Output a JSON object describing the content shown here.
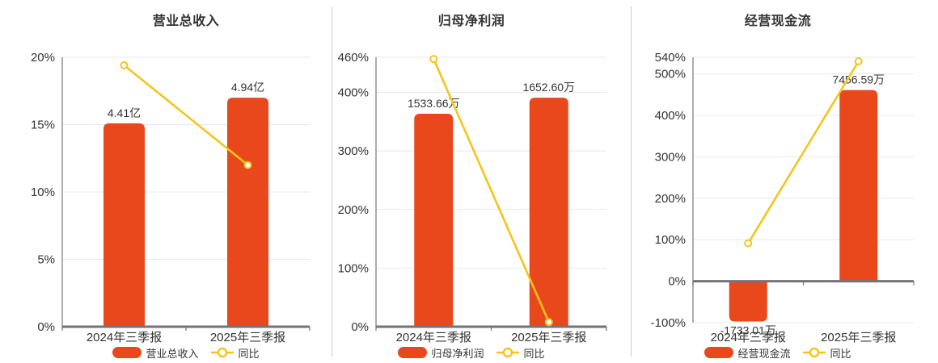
{
  "colors": {
    "bar": "#e8481c",
    "line": "#f5c51a",
    "grid": "#e4e8f0",
    "axis": "#73737a",
    "text": "#333333",
    "separator": "#cccccc",
    "background": "#ffffff"
  },
  "chart_data": [
    {
      "type": "bar",
      "title": "营业总收入",
      "categories": [
        "2024年三季报",
        "2025年三季报"
      ],
      "bar_series": {
        "name": "营业总收入",
        "value_labels": [
          "4.41亿",
          "4.94亿"
        ],
        "bar_top_axis_pct": [
          15.1,
          17.0
        ]
      },
      "line_series": {
        "name": "同比",
        "marker": "hollow-circle",
        "values_pct": [
          19.4,
          12.0
        ]
      },
      "y_axis": {
        "min": 0,
        "max": 20,
        "ticks": [
          0,
          5,
          10,
          15,
          20
        ],
        "tick_labels": [
          "0%",
          "5%",
          "10%",
          "15%",
          "20%"
        ]
      },
      "legend_position": "bottom",
      "grid": true
    },
    {
      "type": "bar",
      "title": "归母净利润",
      "categories": [
        "2024年三季报",
        "2025年三季报"
      ],
      "bar_series": {
        "name": "归母净利润",
        "value_labels": [
          "1533.66万",
          "1652.60万"
        ],
        "bar_top_axis_pct": [
          363.6,
          391.0
        ]
      },
      "line_series": {
        "name": "同比",
        "marker": "hollow-circle",
        "values_pct": [
          457.0,
          7.8
        ]
      },
      "y_axis": {
        "min": 0,
        "max": 460,
        "ticks": [
          0,
          100,
          200,
          300,
          400,
          460
        ],
        "tick_labels": [
          "0%",
          "100%",
          "200%",
          "300%",
          "400%",
          "460%"
        ]
      },
      "legend_position": "bottom",
      "grid": true
    },
    {
      "type": "bar",
      "title": "经营现金流",
      "categories": [
        "2024年三季报",
        "2025年三季报"
      ],
      "bar_series": {
        "name": "经营现金流",
        "value_labels": [
          "-1733.01万",
          "7456.59万"
        ],
        "bar_top_axis_pct": [
          -97,
          461
        ]
      },
      "line_series": {
        "name": "同比",
        "marker": "hollow-circle",
        "values_pct": [
          91.4,
          530.3
        ]
      },
      "y_axis": {
        "min": -100,
        "max": 540,
        "ticks": [
          -100,
          0,
          100,
          200,
          300,
          400,
          500,
          540
        ],
        "tick_labels": [
          "-100%",
          "0%",
          "100%",
          "200%",
          "300%",
          "400%",
          "500%",
          "540%"
        ]
      },
      "legend_position": "bottom",
      "grid": true
    }
  ]
}
